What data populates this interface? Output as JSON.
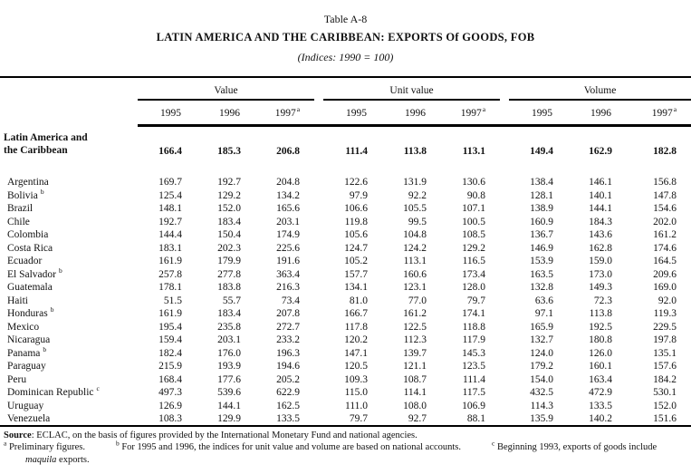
{
  "title": {
    "line1": "Table A-8",
    "line2": "LATIN AMERICA AND THE CARIBBEAN: EXPORTS Of GOODS, FOB",
    "line3": "(Indices: 1990 = 100)"
  },
  "header": {
    "groups": [
      {
        "label": "Value"
      },
      {
        "label": "Unit value"
      },
      {
        "label": "Volume"
      }
    ],
    "years": [
      {
        "label": "1995",
        "sup": ""
      },
      {
        "label": "1996",
        "sup": ""
      },
      {
        "label": "1997",
        "sup": "a"
      }
    ]
  },
  "table": {
    "summary_row": {
      "name_line1": "Latin America and",
      "name_line2": "the Caribbean",
      "values": [
        "166.4",
        "185.3",
        "206.8",
        "111.4",
        "113.8",
        "113.1",
        "149.4",
        "162.9",
        "182.8"
      ]
    },
    "rows": [
      {
        "name": "Argentina",
        "sup": "",
        "values": [
          "169.7",
          "192.7",
          "204.8",
          "122.6",
          "131.9",
          "130.6",
          "138.4",
          "146.1",
          "156.8"
        ]
      },
      {
        "name": "Bolivia",
        "sup": "b",
        "values": [
          "125.4",
          "129.2",
          "134.2",
          "97.9",
          "92.2",
          "90.8",
          "128.1",
          "140.1",
          "147.8"
        ]
      },
      {
        "name": "Brazil",
        "sup": "",
        "values": [
          "148.1",
          "152.0",
          "165.6",
          "106.6",
          "105.5",
          "107.1",
          "138.9",
          "144.1",
          "154.6"
        ]
      },
      {
        "name": "Chile",
        "sup": "",
        "values": [
          "192.7",
          "183.4",
          "203.1",
          "119.8",
          "99.5",
          "100.5",
          "160.9",
          "184.3",
          "202.0"
        ]
      },
      {
        "name": "Colombia",
        "sup": "",
        "values": [
          "144.4",
          "150.4",
          "174.9",
          "105.6",
          "104.8",
          "108.5",
          "136.7",
          "143.6",
          "161.2"
        ]
      },
      {
        "name": "Costa Rica",
        "sup": "",
        "values": [
          "183.1",
          "202.3",
          "225.6",
          "124.7",
          "124.2",
          "129.2",
          "146.9",
          "162.8",
          "174.6"
        ]
      },
      {
        "name": "Ecuador",
        "sup": "",
        "values": [
          "161.9",
          "179.9",
          "191.6",
          "105.2",
          "113.1",
          "116.5",
          "153.9",
          "159.0",
          "164.5"
        ]
      },
      {
        "name": "El Salvador",
        "sup": "b",
        "values": [
          "257.8",
          "277.8",
          "363.4",
          "157.7",
          "160.6",
          "173.4",
          "163.5",
          "173.0",
          "209.6"
        ]
      },
      {
        "name": "Guatemala",
        "sup": "",
        "values": [
          "178.1",
          "183.8",
          "216.3",
          "134.1",
          "123.1",
          "128.0",
          "132.8",
          "149.3",
          "169.0"
        ]
      },
      {
        "name": "Haiti",
        "sup": "",
        "values": [
          "51.5",
          "55.7",
          "73.4",
          "81.0",
          "77.0",
          "79.7",
          "63.6",
          "72.3",
          "92.0"
        ]
      },
      {
        "name": "Honduras",
        "sup": "b",
        "values": [
          "161.9",
          "183.4",
          "207.8",
          "166.7",
          "161.2",
          "174.1",
          "97.1",
          "113.8",
          "119.3"
        ]
      },
      {
        "name": "Mexico",
        "sup": "",
        "values": [
          "195.4",
          "235.8",
          "272.7",
          "117.8",
          "122.5",
          "118.8",
          "165.9",
          "192.5",
          "229.5"
        ]
      },
      {
        "name": "Nicaragua",
        "sup": "",
        "values": [
          "159.4",
          "203.1",
          "233.2",
          "120.2",
          "112.3",
          "117.9",
          "132.7",
          "180.8",
          "197.8"
        ]
      },
      {
        "name": "Panama",
        "sup": "b",
        "values": [
          "182.4",
          "176.0",
          "196.3",
          "147.1",
          "139.7",
          "145.3",
          "124.0",
          "126.0",
          "135.1"
        ]
      },
      {
        "name": "Paraguay",
        "sup": "",
        "values": [
          "215.9",
          "193.9",
          "194.6",
          "120.5",
          "121.1",
          "123.5",
          "179.2",
          "160.1",
          "157.6"
        ]
      },
      {
        "name": "Peru",
        "sup": "",
        "values": [
          "168.4",
          "177.6",
          "205.2",
          "109.3",
          "108.7",
          "111.4",
          "154.0",
          "163.4",
          "184.2"
        ]
      },
      {
        "name": "Dominican Republic",
        "sup": "c",
        "values": [
          "497.3",
          "539.6",
          "622.9",
          "115.0",
          "114.1",
          "117.5",
          "432.5",
          "472.9",
          "530.1"
        ]
      },
      {
        "name": "Uruguay",
        "sup": "",
        "values": [
          "126.9",
          "144.1",
          "162.5",
          "111.0",
          "108.0",
          "106.9",
          "114.3",
          "133.5",
          "152.0"
        ]
      },
      {
        "name": "Venezuela",
        "sup": "",
        "values": [
          "108.3",
          "129.9",
          "133.5",
          "79.7",
          "92.7",
          "88.1",
          "135.9",
          "140.2",
          "151.6"
        ]
      }
    ]
  },
  "footnotes": {
    "source_label": "Source",
    "source_text": ": ECLAC, on the basis of figures provided by the International Monetary Fund and national agencies.",
    "note_a_sup": "a",
    "note_a": "Preliminary figures.",
    "note_b_sup": "b",
    "note_b": "For 1995 and 1996, the indices for unit value and volume are based on national accounts.",
    "note_c_sup": "c",
    "note_c": "Beginning 1993, exports of goods include",
    "note_c_italic": "maquila",
    "note_c_rest": " exports."
  },
  "colors": {
    "text": "#111111",
    "background": "#ffffff",
    "rule": "#000000"
  }
}
